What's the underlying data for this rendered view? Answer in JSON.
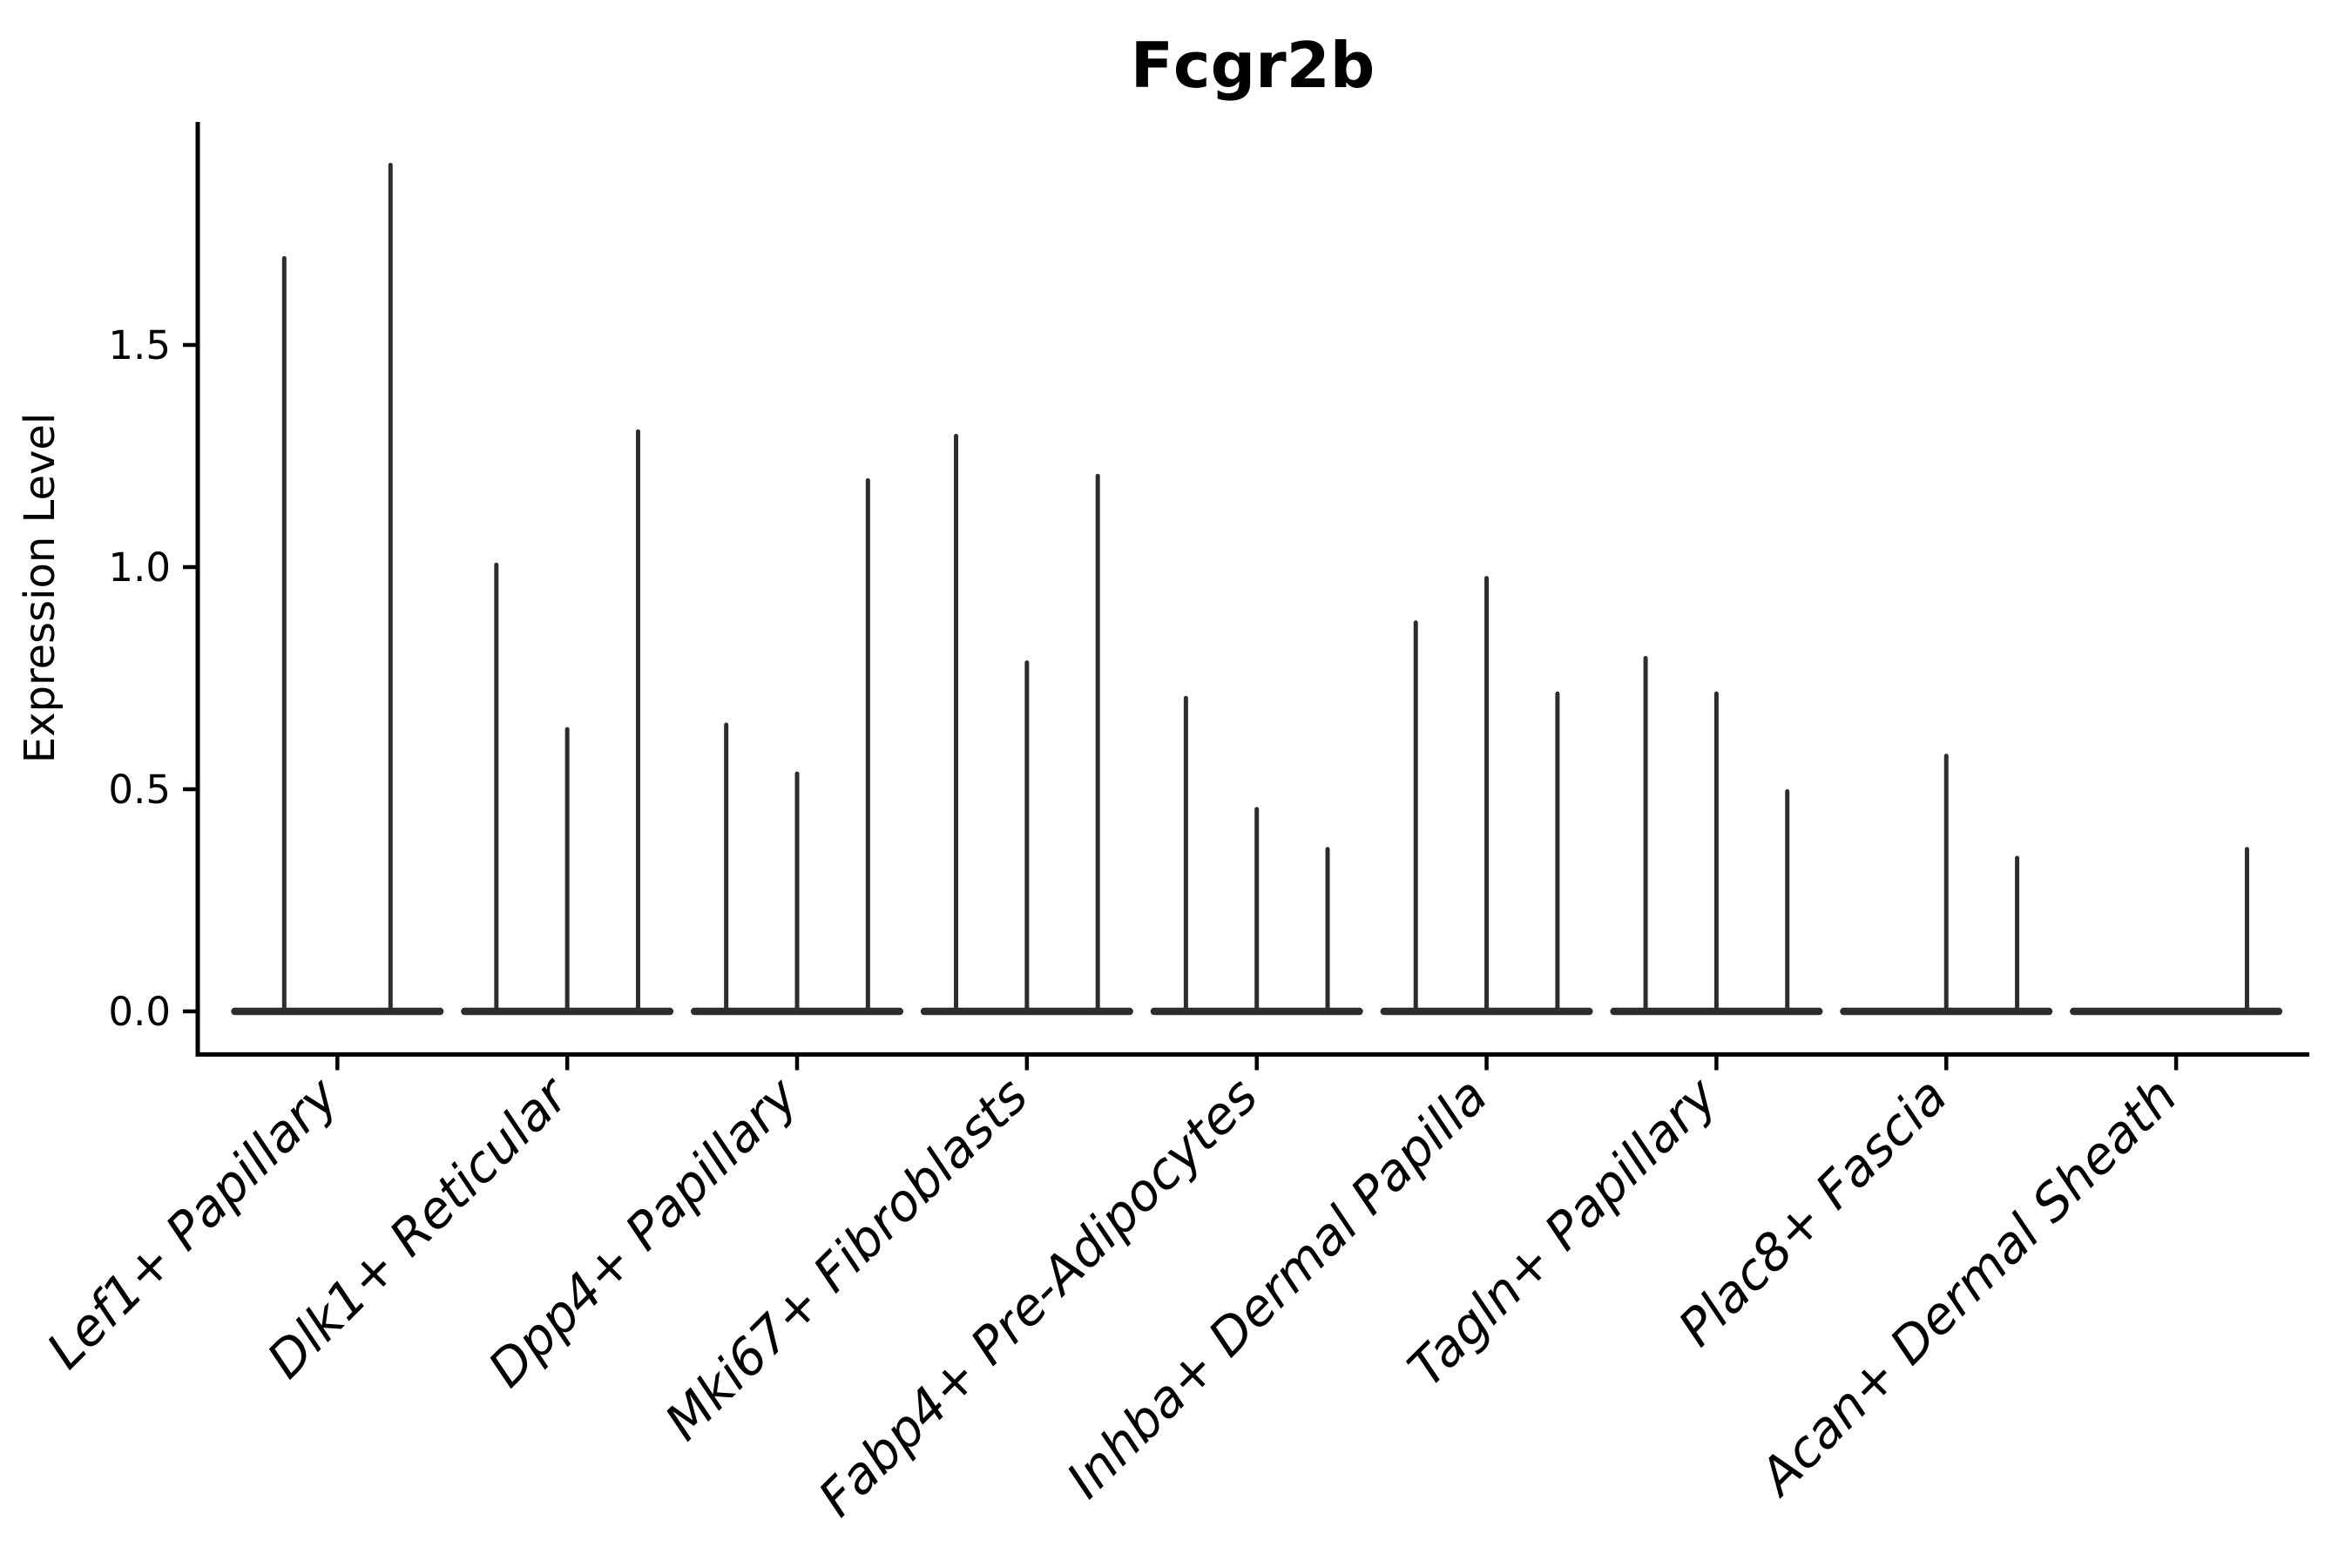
{
  "chart_data": {
    "type": "violin",
    "title": "Fcgr2b",
    "ylabel": "Expression Level",
    "xlabel": "",
    "ylim": [
      -0.1,
      2.0
    ],
    "yticks": [
      0.0,
      0.5,
      1.0,
      1.5
    ],
    "ytick_labels": [
      "0.0",
      "0.5",
      "1.0",
      "1.5"
    ],
    "grid": false,
    "legend": "none",
    "categories": [
      "Lef1+ Papillary",
      "Dlk1+ Reticular",
      "Dpp4+ Papillary",
      "Mki67+ Fibroblasts",
      "Fabp4+ Pre-Adipocytes",
      "Inhba+ Dermal Papilla",
      "Tagln+ Papillary",
      "Plac8+ Fascia",
      "Acan+ Dermal Sheath"
    ],
    "series": [
      {
        "category": "Lef1+ Papillary",
        "violin_peaks": [
          1.7,
          1.91
        ]
      },
      {
        "category": "Dlk1+ Reticular",
        "violin_peaks": [
          1.01,
          0.64,
          1.31
        ]
      },
      {
        "category": "Dpp4+ Papillary",
        "violin_peaks": [
          0.65,
          0.54,
          1.2
        ]
      },
      {
        "category": "Mki67+ Fibroblasts",
        "violin_peaks": [
          1.3,
          0.79,
          1.21
        ]
      },
      {
        "category": "Fabp4+ Pre-Adipocytes",
        "violin_peaks": [
          0.71,
          0.46,
          0.37
        ]
      },
      {
        "category": "Inhba+ Dermal Papilla",
        "violin_peaks": [
          0.88,
          0.98,
          0.72
        ]
      },
      {
        "category": "Tagln+ Papillary",
        "violin_peaks": [
          0.8,
          0.72,
          0.5
        ]
      },
      {
        "category": "Plac8+ Fascia",
        "violin_peaks": [
          0.0,
          0.58,
          0.35
        ]
      },
      {
        "category": "Acan+ Dermal Sheath",
        "violin_peaks": [
          0.0,
          0.0,
          0.37
        ]
      }
    ],
    "colors": {
      "violin": "#2d2d2d",
      "axis": "#000000",
      "text": "#000000",
      "background": "#ffffff"
    }
  }
}
